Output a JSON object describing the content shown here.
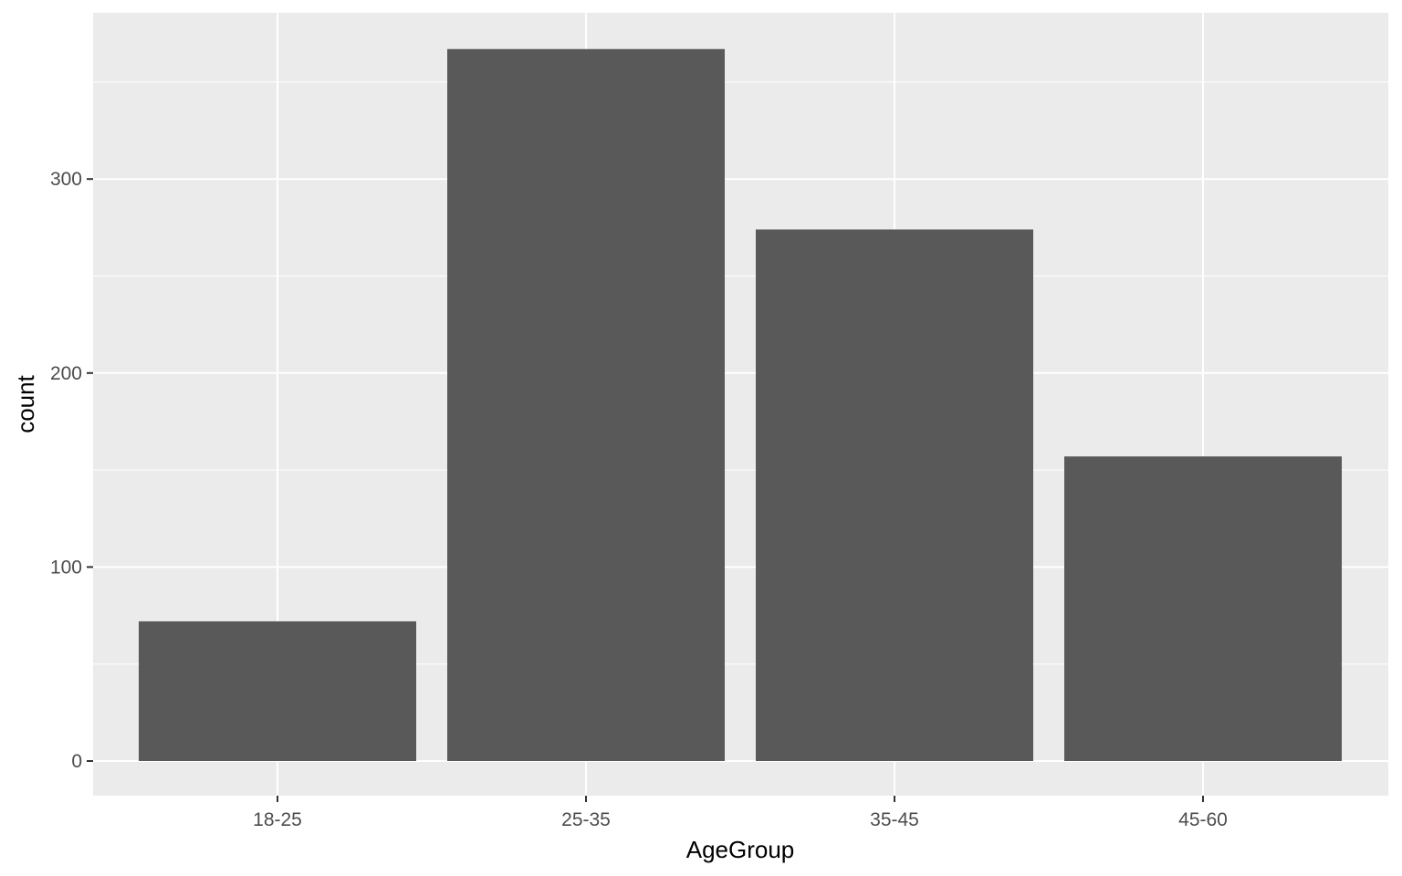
{
  "chart_data": {
    "type": "bar",
    "categories": [
      "18-25",
      "25-35",
      "35-45",
      "45-60"
    ],
    "values": [
      72,
      367,
      274,
      157
    ],
    "title": "",
    "xlabel": "AgeGroup",
    "ylabel": "count",
    "ylim": [
      0,
      385
    ],
    "yticks": [
      0,
      100,
      200,
      300
    ],
    "ytick_labels": [
      "0",
      "100",
      "200",
      "300"
    ],
    "grid": true,
    "legend": "none",
    "colors": {
      "bar": "#595959",
      "panel_background": "#ebebeb",
      "grid": "#ffffff",
      "tick_text": "#4d4d4d"
    }
  }
}
